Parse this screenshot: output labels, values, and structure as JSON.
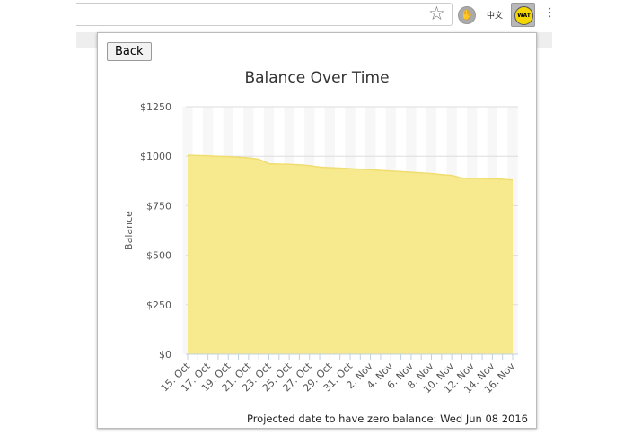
{
  "browser": {
    "icons": [
      "star-icon",
      "stop-hand-icon",
      "chinese-ext-icon",
      "wat-icon",
      "menu-icon"
    ],
    "wat_label": "WAT",
    "cn_label": "中文"
  },
  "popup": {
    "back_label": "Back",
    "footer": "Projected date to have zero balance: Wed Jun 08 2016"
  },
  "chart_data": {
    "type": "area",
    "title": "Balance Over Time",
    "xlabel": "",
    "ylabel": "Balance",
    "ylim": [
      0,
      1250
    ],
    "yticks": [
      "$0",
      "$250",
      "$500",
      "$750",
      "$1000",
      "$1250"
    ],
    "xtick_labels": [
      "15. Oct",
      "17. Oct",
      "19. Oct",
      "21. Oct",
      "23. Oct",
      "25. Oct",
      "27. Oct",
      "29. Oct",
      "31. Oct",
      "2. Nov",
      "4. Nov",
      "6. Nov",
      "8. Nov",
      "10. Nov",
      "12. Nov",
      "14. Nov",
      "16. Nov"
    ],
    "x": [
      "15. Oct",
      "16. Oct",
      "17. Oct",
      "18. Oct",
      "19. Oct",
      "20. Oct",
      "21. Oct",
      "22. Oct",
      "23. Oct",
      "24. Oct",
      "25. Oct",
      "26. Oct",
      "27. Oct",
      "28. Oct",
      "29. Oct",
      "30. Oct",
      "31. Oct",
      "1. Nov",
      "2. Nov",
      "3. Nov",
      "4. Nov",
      "5. Nov",
      "6. Nov",
      "7. Nov",
      "8. Nov",
      "9. Nov",
      "10. Nov",
      "11. Nov",
      "12. Nov",
      "13. Nov",
      "14. Nov",
      "15. Nov",
      "16. Nov"
    ],
    "values": [
      1005,
      1004,
      1002,
      1000,
      998,
      995,
      992,
      985,
      962,
      960,
      959,
      957,
      952,
      945,
      942,
      940,
      937,
      934,
      931,
      928,
      925,
      922,
      919,
      916,
      912,
      907,
      903,
      890,
      888,
      887,
      886,
      884,
      880
    ],
    "grid": true,
    "color": "#f7e98e"
  }
}
